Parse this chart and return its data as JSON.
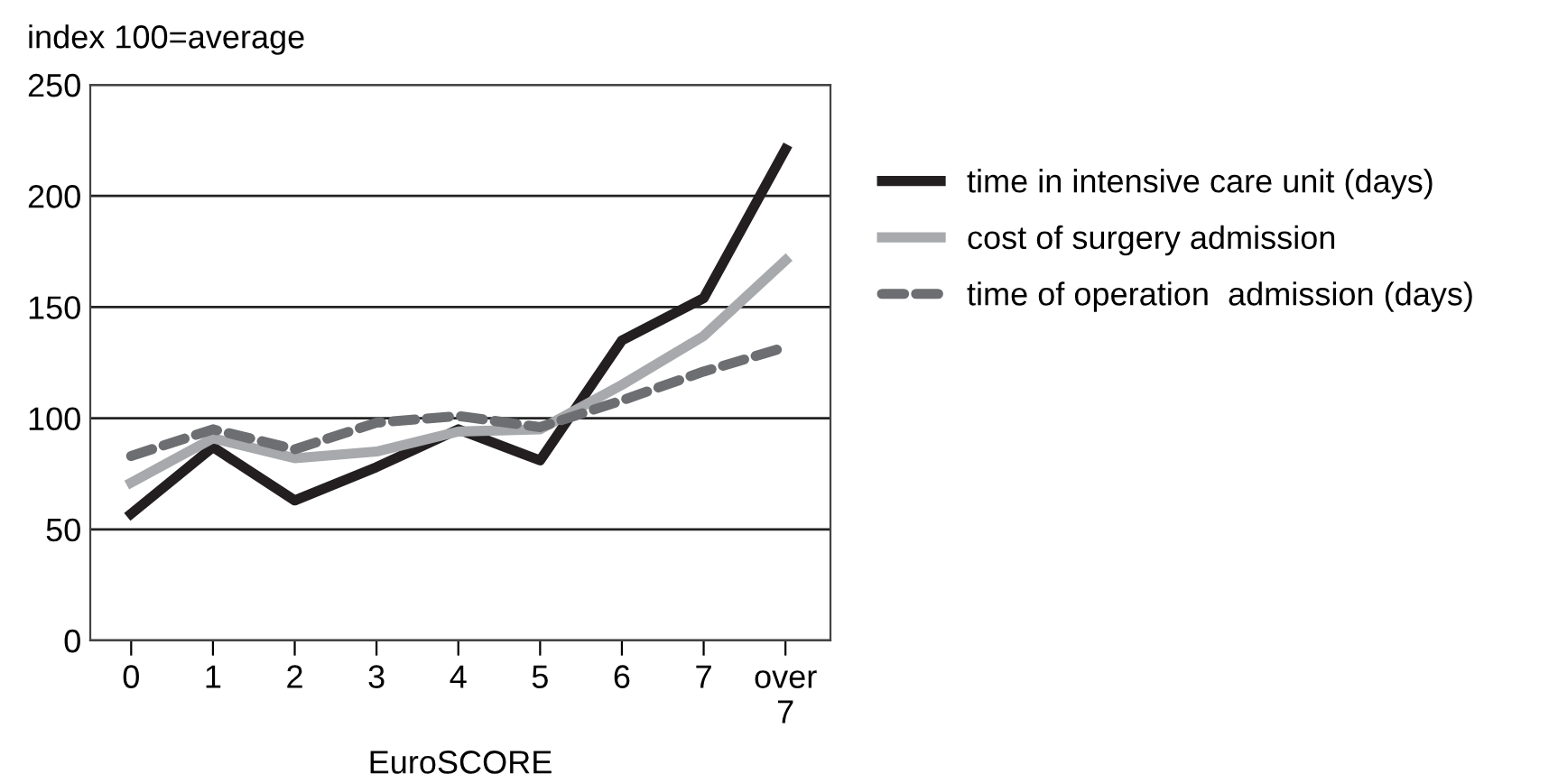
{
  "chart_data": {
    "type": "line",
    "ylabel": "index 100=average",
    "xlabel": "EuroSCORE",
    "categories": [
      "0",
      "1",
      "2",
      "3",
      "4",
      "5",
      "6",
      "7",
      "over\n7"
    ],
    "series": [
      {
        "name": "time in intensive care unit (days)",
        "color": "#231f20",
        "line_style": "solid",
        "values": [
          57,
          87,
          63,
          78,
          95,
          81,
          135,
          154,
          221
        ]
      },
      {
        "name": "cost of surgery admission",
        "color": "#a7a9ac",
        "line_style": "solid",
        "values": [
          71,
          91,
          82,
          85,
          94,
          95,
          115,
          137,
          171
        ]
      },
      {
        "name": "time of operation  admission (days)",
        "color": "#6d6e71",
        "line_style": "dashed",
        "values": [
          83,
          95,
          86,
          98,
          101,
          96,
          108,
          121,
          132
        ]
      }
    ],
    "ylim": [
      0,
      250
    ],
    "yticks": [
      0,
      50,
      100,
      150,
      200,
      250
    ],
    "grid": "y",
    "legend": "right",
    "marker": "none"
  }
}
